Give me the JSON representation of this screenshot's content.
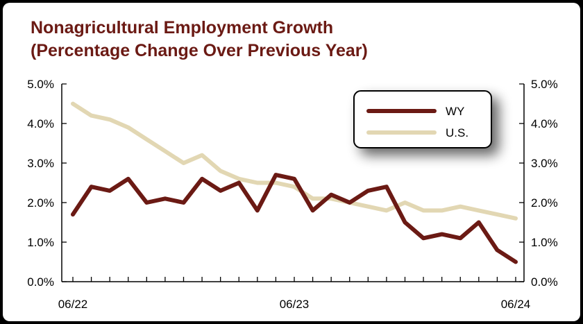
{
  "chart_data": {
    "type": "line",
    "title": "Nonagricultural Employment Growth",
    "subtitle": "(Percentage Change Over Previous Year)",
    "xlabel": "",
    "ylabel": "",
    "x_ticks": [
      "06/22",
      "06/23",
      "06/24"
    ],
    "y_ticks": [
      "0.0%",
      "1.0%",
      "2.0%",
      "3.0%",
      "4.0%",
      "5.0%"
    ],
    "ylim": [
      0,
      5
    ],
    "grid": false,
    "legend_position": "top-right",
    "series": [
      {
        "name": "WY",
        "color": "#6b1a14",
        "values": [
          1.7,
          2.4,
          2.3,
          2.6,
          2.0,
          2.1,
          2.0,
          2.6,
          2.3,
          2.5,
          1.8,
          2.7,
          2.6,
          1.8,
          2.2,
          2.0,
          2.3,
          2.4,
          1.5,
          1.1,
          1.2,
          1.1,
          1.5,
          0.8,
          0.5
        ]
      },
      {
        "name": "U.S.",
        "color": "#e2d7b3",
        "values": [
          4.5,
          4.2,
          4.1,
          3.9,
          3.6,
          3.3,
          3.0,
          3.2,
          2.8,
          2.6,
          2.5,
          2.5,
          2.4,
          2.1,
          2.1,
          2.0,
          1.9,
          1.8,
          2.0,
          1.8,
          1.8,
          1.9,
          1.8,
          1.7,
          1.6
        ]
      }
    ]
  }
}
